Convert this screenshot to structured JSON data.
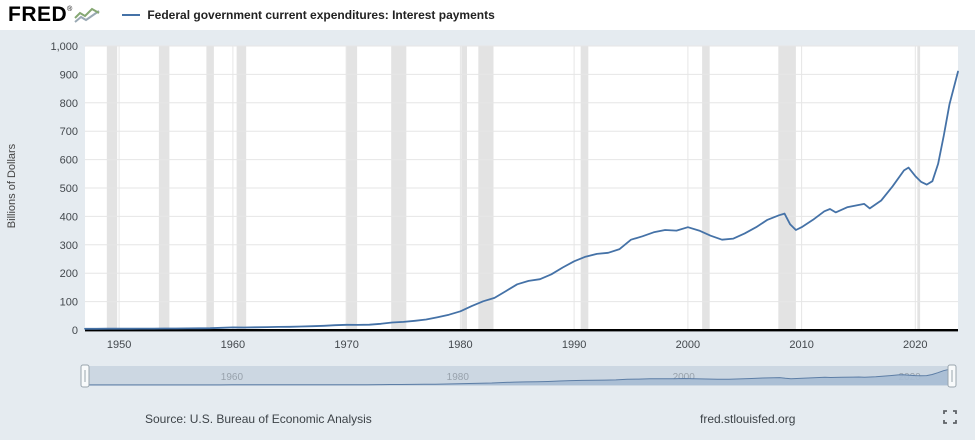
{
  "header": {
    "logo_text": "FRED",
    "logo_reg": "®",
    "series_label": "Federal government current expenditures: Interest payments",
    "line_color": "#4572a7"
  },
  "chart_data": {
    "type": "line",
    "title": "Federal government current expenditures: Interest payments",
    "xlabel": "",
    "ylabel": "Billions of Dollars",
    "ylim": [
      0,
      1000
    ],
    "xlim": [
      1947,
      2023.75
    ],
    "grid": true,
    "legend_position": "top",
    "y_ticks": [
      "0",
      "100",
      "200",
      "300",
      "400",
      "500",
      "600",
      "700",
      "800",
      "900",
      "1,000"
    ],
    "y_tick_values": [
      0,
      100,
      200,
      300,
      400,
      500,
      600,
      700,
      800,
      900,
      1000
    ],
    "x_ticks": [
      1950,
      1960,
      1970,
      1980,
      1990,
      2000,
      2010,
      2020
    ],
    "recessions": [
      [
        1948.92,
        1949.83
      ],
      [
        1953.5,
        1954.42
      ],
      [
        1957.67,
        1958.33
      ],
      [
        1960.33,
        1961.17
      ],
      [
        1969.92,
        1970.92
      ],
      [
        1973.92,
        1975.25
      ],
      [
        1980.08,
        1980.58
      ],
      [
        1981.58,
        1982.92
      ],
      [
        1990.58,
        1991.25
      ],
      [
        2001.25,
        2001.92
      ],
      [
        2007.95,
        2009.5
      ],
      [
        2020.17,
        2020.42
      ]
    ],
    "series": [
      {
        "name": "Federal government current expenditures: Interest payments",
        "color": "#4572a7",
        "points": [
          [
            1947,
            4.2
          ],
          [
            1948,
            4.3
          ],
          [
            1949,
            4.5
          ],
          [
            1950,
            4.6
          ],
          [
            1951,
            4.7
          ],
          [
            1952,
            4.9
          ],
          [
            1953,
            5.1
          ],
          [
            1954,
            5.3
          ],
          [
            1955,
            5.4
          ],
          [
            1956,
            5.7
          ],
          [
            1957,
            6.1
          ],
          [
            1958,
            6.3
          ],
          [
            1959,
            7.6
          ],
          [
            1960,
            9.3
          ],
          [
            1961,
            8.9
          ],
          [
            1962,
            9.6
          ],
          [
            1963,
            10.3
          ],
          [
            1964,
            10.9
          ],
          [
            1965,
            11.4
          ],
          [
            1966,
            12.4
          ],
          [
            1967,
            13.4
          ],
          [
            1968,
            14.8
          ],
          [
            1969,
            16.8
          ],
          [
            1970,
            18.2
          ],
          [
            1971,
            17.8
          ],
          [
            1972,
            18.8
          ],
          [
            1973,
            21.8
          ],
          [
            1974,
            26.5
          ],
          [
            1975,
            28.5
          ],
          [
            1976,
            32.5
          ],
          [
            1977,
            37
          ],
          [
            1978,
            45
          ],
          [
            1979,
            54
          ],
          [
            1980,
            66
          ],
          [
            1981,
            84
          ],
          [
            1982,
            101
          ],
          [
            1983,
            113
          ],
          [
            1984,
            137
          ],
          [
            1985,
            161
          ],
          [
            1986,
            173
          ],
          [
            1987,
            179
          ],
          [
            1988,
            196
          ],
          [
            1989,
            220
          ],
          [
            1990,
            242
          ],
          [
            1991,
            258
          ],
          [
            1992,
            268
          ],
          [
            1993,
            272
          ],
          [
            1994,
            285
          ],
          [
            1995,
            318
          ],
          [
            1996,
            330
          ],
          [
            1997,
            344
          ],
          [
            1998,
            352
          ],
          [
            1999,
            350
          ],
          [
            2000,
            362
          ],
          [
            2001,
            350
          ],
          [
            2002,
            332
          ],
          [
            2003,
            318
          ],
          [
            2004,
            322
          ],
          [
            2005,
            340
          ],
          [
            2006,
            362
          ],
          [
            2007,
            388
          ],
          [
            2008,
            404
          ],
          [
            2008.5,
            410
          ],
          [
            2009,
            372
          ],
          [
            2009.5,
            352
          ],
          [
            2010,
            362
          ],
          [
            2011,
            388
          ],
          [
            2012,
            418
          ],
          [
            2012.5,
            426
          ],
          [
            2013,
            414
          ],
          [
            2014,
            432
          ],
          [
            2015,
            440
          ],
          [
            2015.5,
            444
          ],
          [
            2016,
            428
          ],
          [
            2017,
            456
          ],
          [
            2018,
            506
          ],
          [
            2019,
            562
          ],
          [
            2019.4,
            572
          ],
          [
            2020,
            542
          ],
          [
            2020.5,
            522
          ],
          [
            2021,
            512
          ],
          [
            2021.5,
            524
          ],
          [
            2022,
            585
          ],
          [
            2022.5,
            685
          ],
          [
            2023,
            795
          ],
          [
            2023.5,
            872
          ],
          [
            2023.75,
            910
          ]
        ]
      }
    ]
  },
  "slider": {
    "labels": [
      "1960",
      "1980",
      "2000",
      "2020"
    ],
    "label_years": [
      1960,
      1980,
      2000,
      2020
    ]
  },
  "footer": {
    "source": "Source: U.S. Bureau of Economic Analysis",
    "site": "fred.stlouisfed.org"
  }
}
